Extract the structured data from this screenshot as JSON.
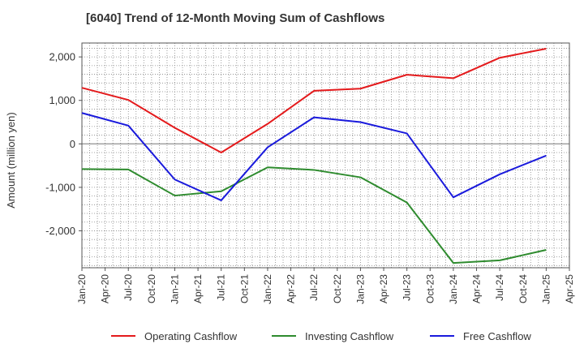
{
  "chart_data": {
    "type": "line",
    "title": "[6040]  Trend of 12-Month Moving Sum of Cashflows",
    "ylabel": "Amount (million yen)",
    "xlabel": "",
    "ylim": [
      -2850,
      2320
    ],
    "y_ticks": [
      2000,
      1000,
      0,
      -1000,
      -2000
    ],
    "y_tick_labels": [
      "2,000",
      "1,000",
      "0",
      "-1,000",
      "-2,000"
    ],
    "x_tick_labels": [
      "Jan-20",
      "Apr-20",
      "Jul-20",
      "Oct-20",
      "Jan-21",
      "Apr-21",
      "Jul-21",
      "Oct-21",
      "Jan-22",
      "Apr-22",
      "Jul-22",
      "Oct-22",
      "Jan-23",
      "Apr-23",
      "Jul-23",
      "Oct-23",
      "Jan-24",
      "Apr-24",
      "Jul-24",
      "Oct-24",
      "Jan-25",
      "Apr-25"
    ],
    "x_points": [
      "Jan-20",
      "Jul-20",
      "Jan-21",
      "Jul-21",
      "Jan-22",
      "Jul-22",
      "Jan-23",
      "Jul-23",
      "Jan-24",
      "Jul-24",
      "Jan-25"
    ],
    "grid": true,
    "legend_position": "bottom",
    "series": [
      {
        "name": "Operating Cashflow",
        "color": "#e41a1c",
        "values": [
          1290,
          1010,
          370,
          -200,
          460,
          1220,
          1270,
          1590,
          1510,
          1980,
          2190
        ]
      },
      {
        "name": "Investing Cashflow",
        "color": "#2e8b2e",
        "values": [
          -580,
          -590,
          -1190,
          -1090,
          -540,
          -600,
          -770,
          -1350,
          -2740,
          -2680,
          -2440
        ]
      },
      {
        "name": "Free Cashflow",
        "color": "#1a1adc",
        "values": [
          710,
          420,
          -820,
          -1300,
          -80,
          610,
          500,
          240,
          -1230,
          -700,
          -270
        ]
      }
    ]
  }
}
